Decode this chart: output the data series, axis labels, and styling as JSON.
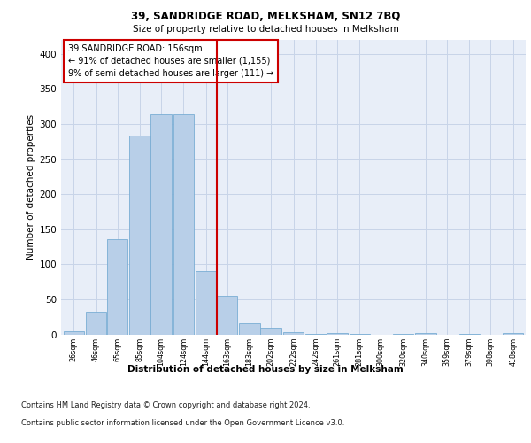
{
  "title": "39, SANDRIDGE ROAD, MELKSHAM, SN12 7BQ",
  "subtitle": "Size of property relative to detached houses in Melksham",
  "xlabel": "Distribution of detached houses by size in Melksham",
  "ylabel": "Number of detached properties",
  "bin_labels": [
    "26sqm",
    "46sqm",
    "65sqm",
    "85sqm",
    "104sqm",
    "124sqm",
    "144sqm",
    "163sqm",
    "183sqm",
    "202sqm",
    "222sqm",
    "242sqm",
    "261sqm",
    "281sqm",
    "300sqm",
    "320sqm",
    "340sqm",
    "359sqm",
    "379sqm",
    "398sqm",
    "418sqm"
  ],
  "bar_heights": [
    5,
    32,
    136,
    284,
    314,
    314,
    90,
    55,
    16,
    9,
    3,
    1,
    2,
    1,
    0,
    1,
    2,
    0,
    1,
    0,
    2
  ],
  "bar_color": "#b8cfe8",
  "bar_edge_color": "#7aadd4",
  "annotation_line1": "39 SANDRIDGE ROAD: 156sqm",
  "annotation_line2": "← 91% of detached houses are smaller (1,155)",
  "annotation_line3": "9% of semi-detached houses are larger (111) →",
  "annotation_box_color": "#ffffff",
  "annotation_box_edge": "#cc0000",
  "vline_color": "#cc0000",
  "grid_color": "#c8d4e8",
  "background_color": "#e8eef8",
  "footer_line1": "Contains HM Land Registry data © Crown copyright and database right 2024.",
  "footer_line2": "Contains public sector information licensed under the Open Government Licence v3.0.",
  "ylim": [
    0,
    420
  ],
  "n_bins": 21
}
